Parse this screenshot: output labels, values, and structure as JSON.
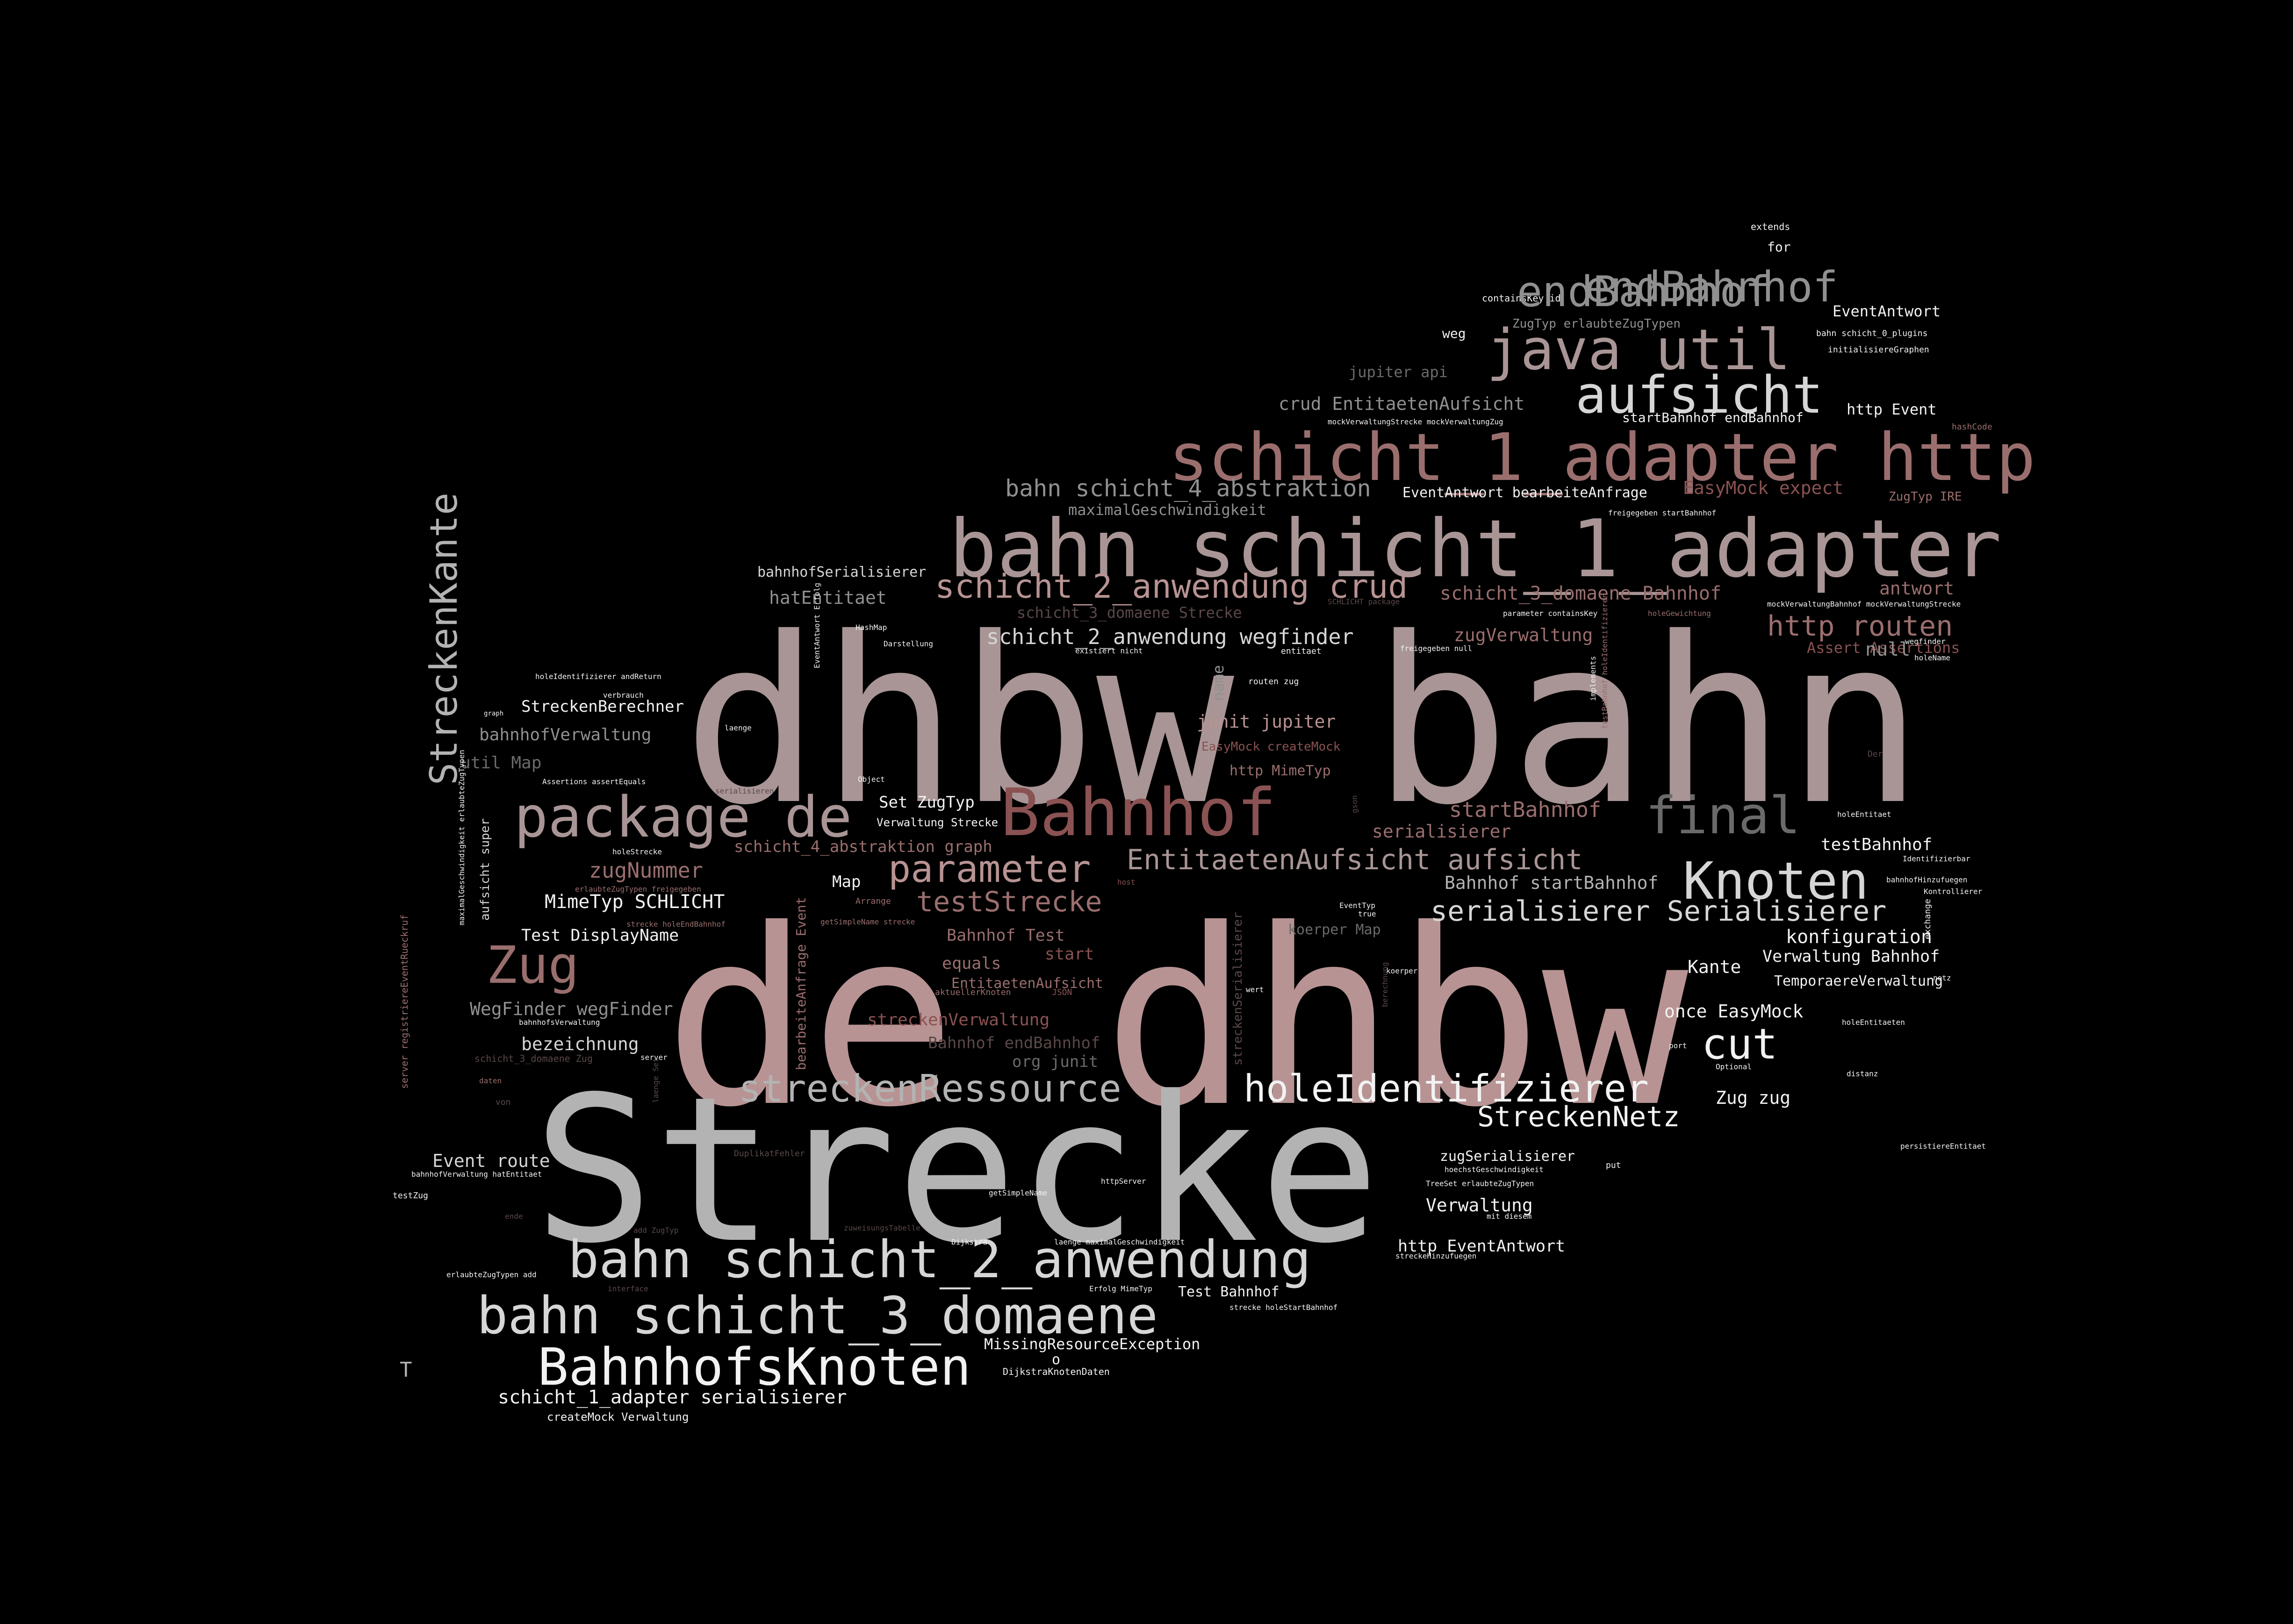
{
  "palette": {
    "white": "#f2f2f2",
    "light": "#d6d6d6",
    "silver": "#b3b3b3",
    "gray": "#909090",
    "taupe": "#a99595",
    "mauve": "#b89393",
    "rose": "#9b6e6e",
    "red": "#8a5252",
    "dark": "#6a6a6a",
    "dim": "#5b4848"
  },
  "words": [
    "dhbw bahn",
    "de dhbw",
    "Strecke",
    "bahn schicht_1_adapter",
    "schicht_1_adapter http",
    "java util",
    "aufsicht",
    "endBahnhof",
    "bahn schicht_2_anwendung",
    "bahn schicht_3_domaene",
    "BahnhofsKnoten",
    "Bahnhof",
    "package de",
    "final",
    "Knoten",
    "Zug",
    "StreckenKante",
    "streckenRessource",
    "holeIdentifizierer",
    "cut",
    "schicht_2_anwendung crud",
    "parameter",
    "EntitaetenAufsicht aufsicht",
    "serialisierer Serialisierer",
    "StreckenNetz",
    "testStrecke",
    "http routen",
    "bahn schicht_4_abstraktion",
    "schicht_2_anwendung wegfinder",
    "zugNummer",
    "schicht_1_adapter serialisierer",
    "MimeTyp SCHLICHT",
    "WegFinder wegFinder",
    "bezeichnung",
    "Event route",
    "startBahnhof",
    "Bahnhof startBahnhof",
    "konfiguration",
    "Verwaltung Bahnhof",
    "Kante",
    "once EasyMock",
    "Zug zug",
    "Verwaltung",
    "http EventAntwort",
    "zugSerialisierer",
    "junit jupiter",
    "http MimeTyp",
    "EasyMock createMock",
    "serialisierer",
    "Test DisplayName",
    "zugVerwaltung",
    "schicht_3_domaene Bahnhof",
    "antwort",
    "Assert Assertions",
    "null",
    "crud EntitaetenAufsicht",
    "jupiter api",
    "http Event",
    "startBahnhof endBahnhof",
    "EasyMock expect",
    "EventAntwort bearbeiteAnfrage",
    "maximalGeschwindigkeit",
    "ZugTyp IRE",
    "EventAntwort",
    "ZugTyp erlaubteZugTypen",
    "for",
    "extends",
    "weg",
    "containsKey id",
    "bahnhofSerialisierer",
    "hatEntitaet",
    "schicht_3_domaene Strecke",
    "StreckenBerechner",
    "bahnhofVerwaltung",
    "util Map",
    "Set ZugTyp",
    "Verwaltung Strecke",
    "schicht_4_abstraktion graph",
    "Map",
    "Bahnhof Test",
    "start",
    "equals",
    "EntitaetenAufsicht",
    "streckenVerwaltung",
    "Bahnhof endBahnhof",
    "org junit",
    "testBahnhof",
    "TemporaereVerwaltung",
    "MissingResourceException",
    "o",
    "DijkstraKnotenDaten",
    "createMock Verwaltung",
    "Test Bahnhof",
    "name",
    "koerper Map",
    "bearbeiteAnfrage Event",
    "streckenSerialisierer",
    "T",
    "server registriereEventRueckruf",
    "aufsicht super",
    "Darstellung",
    "HashMap",
    "Object",
    "Arrange",
    "getSimpleName strecke",
    "aktuellerKnoten",
    "JSON",
    "routen zug",
    "entitaet",
    "existiert nicht",
    "freigegeben null",
    "holeName",
    "wegfinder",
    "holeEntitaet",
    "Identifizierbar",
    "bahnhofHinzufuegen",
    "Kontrollierer",
    "exchange",
    "netz",
    "port",
    "Optional",
    "distanz",
    "holeEntitaeten",
    "persistiereEntitaet",
    "put",
    "mit diesem",
    "hoechstGeschwindigkeit",
    "TreeSet erlaubteZugTypen",
    "streckeHinzufuegen",
    "laenge maximalGeschwindigkeit",
    "Erfolg MimeTyp",
    "strecke holeStartBahnhof",
    "Dijkstra",
    "zuweisungsTabelle",
    "getSimpleName",
    "httpServer",
    "interface",
    "erlaubteZugTypen add",
    "testZug",
    "bahnhofVerwaltung hatEntitaet",
    "ende",
    "add ZugTyp",
    "DuplikatFehler",
    "holeStrecke",
    "verbrauch",
    "holeIdentifizierer andReturn",
    "graph",
    "Assertions assertEquals",
    "serialisieren",
    "laenge",
    "implements",
    "testBahnhof holeIdentifizierer",
    "EventAntwort Erfolg",
    "EventTyp",
    "true",
    "host",
    "koerper",
    "wert",
    "berechnung",
    "gson",
    "Der",
    "mockVerwaltungBahnhof mockVerwaltungStrecke",
    "holeGewichtung",
    "parameter containsKey",
    "freigegeben startBahnhof",
    "SCHLICHT package",
    "bahn schicht_0_plugins",
    "initialisiereGraphen",
    "hashCode",
    "mockVerwaltungStrecke mockVerwaltungZug",
    "strecke holeEndBahnhof",
    "erlaubteZugTypen freigegeben",
    "maximalGeschwindigkeit erlaubteZugTypen",
    "bahnhofsVerwaltung",
    "schicht_3_domaene Zug",
    "server",
    "daten",
    "von",
    "laenge Set",
    "endBahnhof"
  ]
}
